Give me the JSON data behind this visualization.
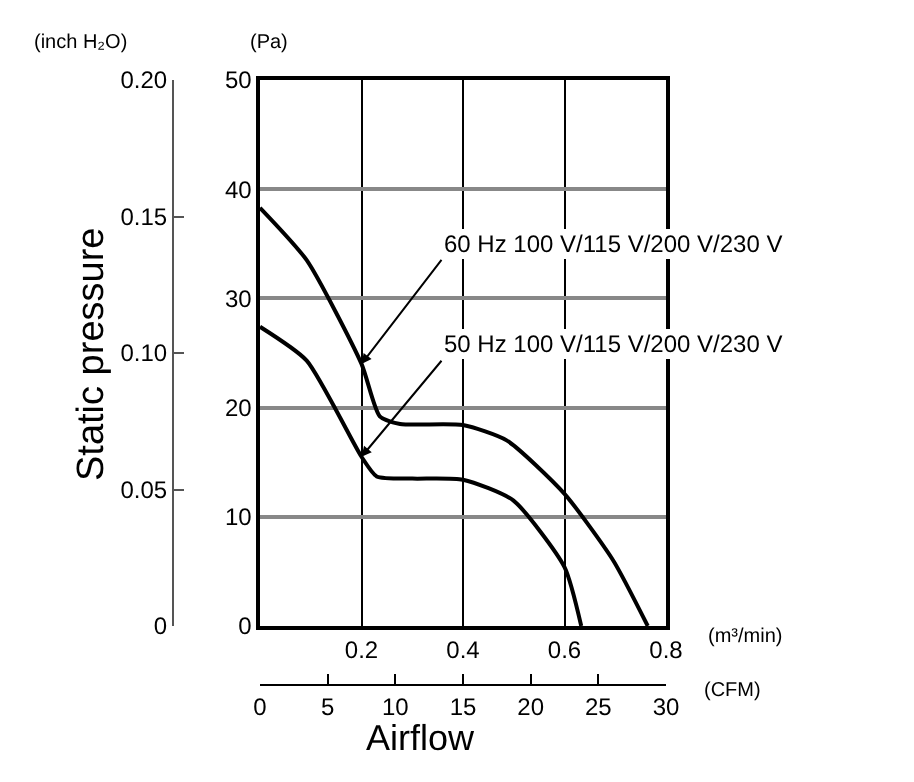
{
  "chart_data": {
    "type": "line",
    "xlabel": "Airflow",
    "ylabel": "(Pa)",
    "y2label": "Static pressure",
    "x2label": "(CFM)",
    "x": [
      0,
      0.092,
      0.2,
      0.236,
      0.276,
      0.4,
      0.486,
      0.6,
      0.696,
      0.764
    ],
    "series": [
      {
        "color": "#000000",
        "values": [
          38.3,
          33.5,
          24.0,
          19.2,
          18.5,
          18.4,
          17.0,
          12.1,
          6.0,
          0
        ]
      },
      {
        "color": "#000000",
        "x": [
          0,
          0.092,
          0.2,
          0.23,
          0.3,
          0.4,
          0.499,
          0.6,
          0.633
        ],
        "values": [
          27.4,
          24.3,
          15.5,
          13.7,
          13.5,
          13.4,
          11.5,
          5.4,
          0
        ]
      }
    ],
    "xlim": [
      0,
      0.8
    ],
    "xticks": [
      0.2,
      0.4,
      0.6,
      0.8
    ],
    "ylim": [
      0,
      50
    ],
    "yticks": [
      0,
      10,
      20,
      30,
      40,
      50
    ],
    "y2lim": [
      0,
      0.2
    ],
    "y2ticks": [
      0,
      0.05,
      {
        "value": 0.1,
        "label": "0.10"
      },
      0.15,
      {
        "value": 0.2,
        "label": "0.20"
      }
    ],
    "x2lim": [
      0,
      30
    ],
    "x2ticks": [
      0,
      5,
      10,
      15,
      20,
      25,
      30
    ],
    "grid": true,
    "marker": "none",
    "line_style": "solid",
    "annotations": [
      "(inch H₂O)",
      "(m³/min)",
      {
        "text": "60 Hz 100 V/115 V/200 V/230 V",
        "x": 0.2,
        "y": 24.0
      },
      {
        "text": "50 Hz 100 V/115 V/200 V/230 V",
        "x": 0.2,
        "y": 15.5
      }
    ]
  }
}
